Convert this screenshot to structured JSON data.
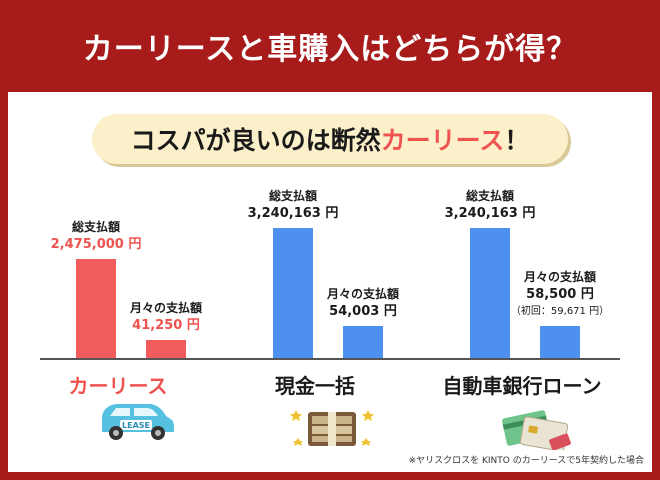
{
  "header": {
    "title": "カーリースと車購入はどちらが得？"
  },
  "headline": {
    "part1": "コスパが良いのは断然",
    "part2": "カーリース",
    "part3": "！"
  },
  "colors": {
    "frame": "#a81b1b",
    "lease_bar": "#f25c5c",
    "purchase_bar": "#4d90f0",
    "accent_text": "#ef5350",
    "headline_bg": "#fbf0c9"
  },
  "chart_data": {
    "type": "bar",
    "groups": [
      {
        "name": "カーリース",
        "color": "#f25c5c",
        "bars": [
          {
            "label": "総支払額",
            "display": "2,475,000 円",
            "value": 2475000
          },
          {
            "label": "月々の支払額",
            "display": "41,250 円",
            "value": 41250
          }
        ]
      },
      {
        "name": "現金一括",
        "color": "#4d90f0",
        "bars": [
          {
            "label": "総支払額",
            "display": "3,240,163 円",
            "value": 3240163
          },
          {
            "label": "月々の支払額",
            "display": "54,003 円",
            "value": 54003
          }
        ]
      },
      {
        "name": "自動車銀行ローン",
        "color": "#4d90f0",
        "bars": [
          {
            "label": "総支払額",
            "display": "3,240,163 円",
            "value": 3240163
          },
          {
            "label": "月々の支払額",
            "display": "58,500 円",
            "value": 58500,
            "note": "（初回：59,671 円）"
          }
        ]
      }
    ]
  },
  "illustrations": {
    "lease_badge": "LEASE"
  },
  "footnote": "※ヤリスクロスを KINTO のカーリースで5年契約した場合"
}
